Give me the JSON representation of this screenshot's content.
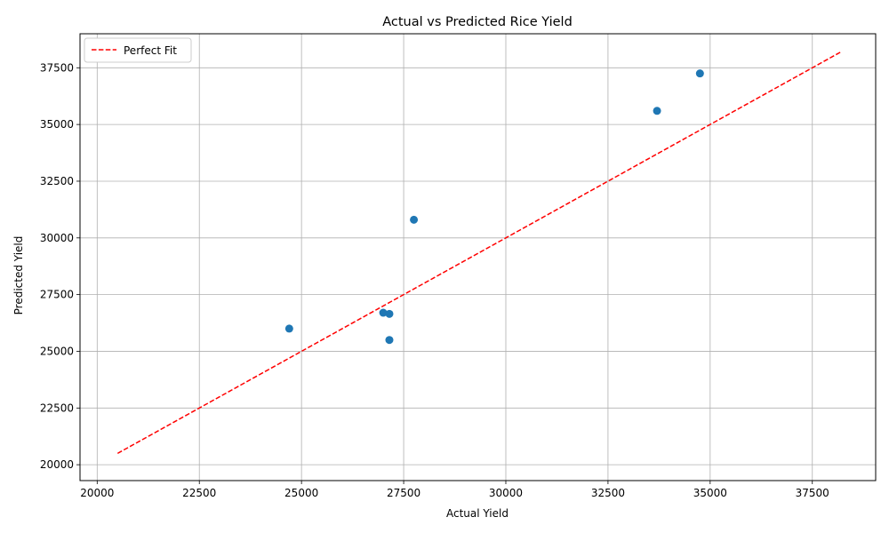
{
  "chart_data": {
    "type": "scatter",
    "title": "Actual vs Predicted Rice Yield",
    "xlabel": "Actual Yield",
    "ylabel": "Predicted Yield",
    "xlim": [
      19580,
      39050
    ],
    "ylim": [
      19300,
      39000
    ],
    "xticks": [
      20000,
      22500,
      25000,
      27500,
      30000,
      32500,
      35000,
      37500
    ],
    "yticks": [
      20000,
      22500,
      25000,
      27500,
      30000,
      32500,
      35000,
      37500
    ],
    "xtick_labels": [
      "20000",
      "22500",
      "25000",
      "27500",
      "30000",
      "32500",
      "35000",
      "37500"
    ],
    "ytick_labels": [
      "20000",
      "22500",
      "25000",
      "27500",
      "30000",
      "32500",
      "35000",
      "37500"
    ],
    "grid": true,
    "legend_position": "top-left",
    "points": {
      "x": [
        24700,
        27000,
        27150,
        27150,
        27750,
        33700,
        34750
      ],
      "y": [
        26000,
        26700,
        26650,
        25500,
        30800,
        35600,
        37250
      ],
      "color": "#1f77b4"
    },
    "reference_line": {
      "name": "Perfect Fit",
      "x": [
        20500,
        38200
      ],
      "y": [
        20500,
        38200
      ],
      "color": "#ff0000",
      "style": "dashed"
    }
  }
}
